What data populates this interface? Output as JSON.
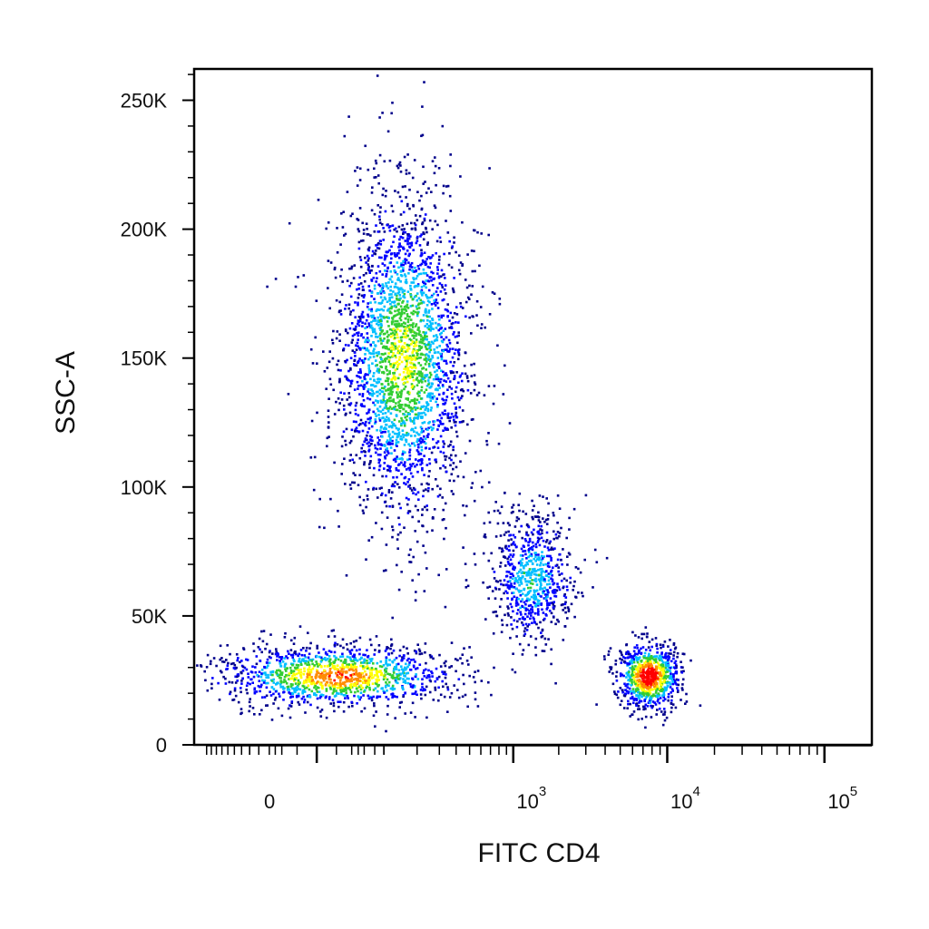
{
  "chart_data": {
    "type": "scatter",
    "subtype": "flow-cytometry-density-dot-plot",
    "xlabel": "FITC CD4",
    "ylabel": "SSC-A",
    "x_scale": "biexponential",
    "y_scale": "linear",
    "ylim": [
      0,
      262144
    ],
    "xlim": [
      -300,
      200000
    ],
    "y_ticks": [
      {
        "value": 0,
        "label": "0"
      },
      {
        "value": 50000,
        "label": "50K"
      },
      {
        "value": 100000,
        "label": "100K"
      },
      {
        "value": 150000,
        "label": "150K"
      },
      {
        "value": 200000,
        "label": "200K"
      },
      {
        "value": 250000,
        "label": "250K"
      }
    ],
    "x_ticks": [
      {
        "value": 0,
        "label": "0",
        "exp": ""
      },
      {
        "value": 1000,
        "label": "10",
        "exp": "3"
      },
      {
        "value": 10000,
        "label": "10",
        "exp": "4"
      },
      {
        "value": 100000,
        "label": "10",
        "exp": "5"
      }
    ],
    "color_scale": [
      "#00008b",
      "#0000ff",
      "#00bfff",
      "#32cd32",
      "#ffff00",
      "#ff8c00",
      "#ff0000"
    ],
    "grid": false,
    "legend": "none",
    "populations": [
      {
        "label": "",
        "center_x": 150,
        "center_y": 150000,
        "spread_x": 130,
        "spread_y": 32000,
        "count": 2600,
        "peak_density": 0.55
      },
      {
        "label": "",
        "center_x": 20,
        "center_y": 27000,
        "spread_x": 110,
        "spread_y": 6000,
        "count": 1300,
        "peak_density": 0.8
      },
      {
        "label": "",
        "center_x": 1300,
        "center_y": 65000,
        "spread_x": 500,
        "spread_y": 13000,
        "count": 700,
        "peak_density": 0.35
      },
      {
        "label": "",
        "center_x": 7500,
        "center_y": 27000,
        "spread_x": 2000,
        "spread_y": 6500,
        "count": 800,
        "peak_density": 1.0
      }
    ]
  }
}
